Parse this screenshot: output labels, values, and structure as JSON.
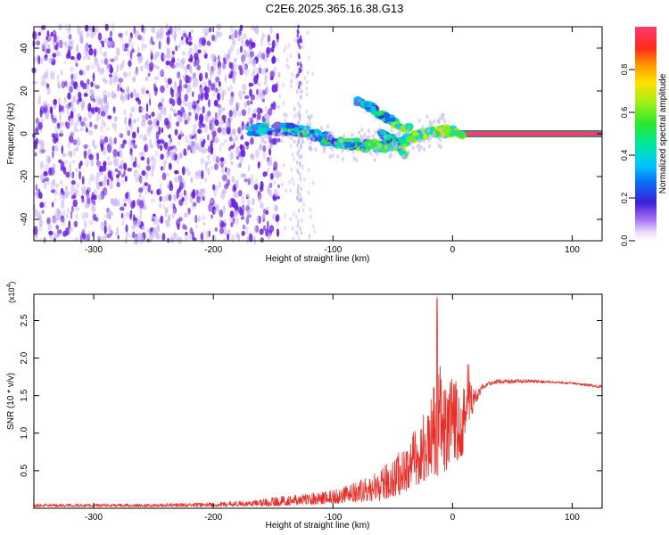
{
  "title": "C2E6.2025.365.16.38.G13",
  "colors": {
    "snr_line": "#e8302b",
    "spectro_main": "#6a1fe0",
    "spectro_light": "#c9b4f5"
  },
  "chart_data": [
    {
      "type": "heatmap",
      "xlabel": "Height of straight line (km)",
      "ylabel": "Frequency (Hz)",
      "xlim": [
        -350,
        125
      ],
      "ylim": [
        -50,
        50
      ],
      "xticks": [
        -300,
        -200,
        -100,
        0,
        100
      ],
      "yticks": [
        -40,
        -20,
        0,
        20,
        40
      ],
      "xticklabels": [
        "-300",
        "-200",
        "-100",
        "0",
        "100"
      ],
      "yticklabels": [
        "-40",
        "-20",
        "0",
        "20",
        "40"
      ],
      "grid": false,
      "colorbar": {
        "label": "Normalized spectral amplitude",
        "range": [
          0,
          1
        ],
        "ticks": [
          0.0,
          0.2,
          0.4,
          0.6,
          0.8
        ],
        "ticklabels": [
          "0.0",
          "0.2",
          "0.4",
          "0.6",
          "0.8"
        ],
        "colormap": "rainbow"
      },
      "features": {
        "noise_region_x": [
          -350,
          -145
        ],
        "noise_band_x": [
          -130,
          -126
        ],
        "carrier_line": {
          "x": [
            5,
            125
          ],
          "freq": 0
        },
        "main_track": [
          [
            -170,
            2
          ],
          [
            -140,
            2
          ],
          [
            -120,
            1
          ],
          [
            -100,
            -4
          ],
          [
            -80,
            -5
          ],
          [
            -60,
            -6
          ],
          [
            -45,
            -5
          ],
          [
            -30,
            -1
          ],
          [
            -15,
            1
          ],
          [
            0,
            1
          ],
          [
            8,
            1
          ]
        ],
        "upper_track": [
          [
            -80,
            15
          ],
          [
            -70,
            13
          ],
          [
            -60,
            9
          ],
          [
            -50,
            6
          ],
          [
            -42,
            3
          ],
          [
            -35,
            2
          ]
        ],
        "lower_track": [
          [
            -60,
            0
          ],
          [
            -50,
            -3
          ],
          [
            -45,
            -5
          ],
          [
            -40,
            -10
          ]
        ]
      }
    },
    {
      "type": "line",
      "xlabel": "Height of straight line (km)",
      "ylabel": "SNR (10 * v/v)",
      "y_multiplier": "(x10",
      "y_multiplier_exp": "4",
      "y_multiplier_close": ")",
      "xlim": [
        -350,
        125
      ],
      "ylim": [
        0,
        2.85
      ],
      "xticks": [
        -300,
        -200,
        -100,
        0,
        100
      ],
      "yticks": [
        0.5,
        1.0,
        1.5,
        2.0,
        2.5
      ],
      "xticklabels": [
        "-300",
        "-200",
        "-100",
        "0",
        "100"
      ],
      "yticklabels": [
        "0.5",
        "1.0",
        "1.5",
        "2.0",
        "2.5"
      ],
      "grid": false,
      "series_envelope": {
        "x": [
          -350,
          -250,
          -200,
          -170,
          -150,
          -120,
          -100,
          -80,
          -60,
          -50,
          -40,
          -30,
          -25,
          -20,
          -15,
          -13,
          -10,
          -5,
          0,
          5,
          10,
          13,
          16,
          20,
          25,
          30,
          40,
          60,
          80,
          100,
          125
        ],
        "low": [
          0.02,
          0.02,
          0.02,
          0.03,
          0.03,
          0.05,
          0.06,
          0.08,
          0.1,
          0.15,
          0.2,
          0.3,
          0.35,
          0.4,
          0.45,
          0.4,
          0.45,
          0.5,
          0.55,
          0.6,
          0.75,
          0.9,
          1.2,
          1.4,
          1.58,
          1.64,
          1.66,
          1.67,
          1.67,
          1.65,
          1.6
        ],
        "high": [
          0.06,
          0.06,
          0.08,
          0.1,
          0.15,
          0.2,
          0.25,
          0.35,
          0.5,
          0.7,
          0.85,
          1.1,
          1.25,
          1.35,
          1.7,
          2.85,
          1.8,
          1.6,
          1.8,
          1.9,
          2.0,
          2.18,
          1.7,
          1.55,
          1.65,
          1.7,
          1.72,
          1.72,
          1.7,
          1.68,
          1.64
        ]
      }
    }
  ]
}
